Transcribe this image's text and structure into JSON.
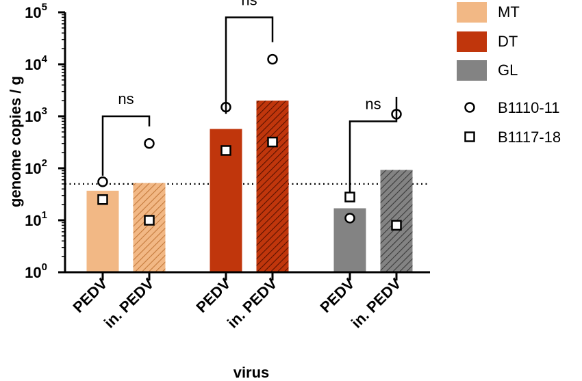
{
  "chart_data": {
    "type": "bar",
    "ylabel": "genome copies / g",
    "xlabel": "virus",
    "yscale": "log",
    "ylim": [
      1,
      100000
    ],
    "y_ticks": [
      {
        "value": 1,
        "base": "10",
        "exp": "0"
      },
      {
        "value": 10,
        "base": "10",
        "exp": "1"
      },
      {
        "value": 100,
        "base": "10",
        "exp": "2"
      },
      {
        "value": 1000,
        "base": "10",
        "exp": "3"
      },
      {
        "value": 10000,
        "base": "10",
        "exp": "4"
      },
      {
        "value": 100000,
        "base": "10",
        "exp": "5"
      }
    ],
    "threshold": 50,
    "groups": [
      {
        "name": "MT",
        "color": "#F2B885",
        "hatch": "#c47a3c"
      },
      {
        "name": "DT",
        "color": "#C0360C",
        "hatch": "#5a1200"
      },
      {
        "name": "GL",
        "color": "#838383",
        "hatch": "#3a3a3a"
      }
    ],
    "bars": [
      {
        "label": "PEDV",
        "group": "MT",
        "treated": false,
        "value": 37,
        "B1110-11": 55,
        "B1117-18": 25
      },
      {
        "label": "in. PEDV",
        "group": "MT",
        "treated": true,
        "value": 52,
        "B1110-11": 300,
        "B1117-18": 10
      },
      {
        "label": "PEDV",
        "group": "DT",
        "treated": false,
        "value": 570,
        "B1110-11": 1500,
        "B1117-18": 220
      },
      {
        "label": "in. PEDV",
        "group": "DT",
        "treated": true,
        "value": 2000,
        "B1110-11": 12500,
        "B1117-18": 320
      },
      {
        "label": "PEDV",
        "group": "GL",
        "treated": false,
        "value": 17,
        "B1110-11": 11,
        "B1117-18": 28
      },
      {
        "label": "in. PEDV",
        "group": "GL",
        "treated": true,
        "value": 93,
        "B1110-11": 1100,
        "B1117-18": 8
      }
    ],
    "comparisons": [
      {
        "label": "ns",
        "from": 0,
        "to": 1,
        "level": 1000
      },
      {
        "label": "ns",
        "from": 2,
        "to": 3,
        "level": 80000
      },
      {
        "label": "ns",
        "from": 4,
        "to": 5,
        "level": 800
      }
    ],
    "legend": [
      {
        "label": "MT",
        "kind": "swatch",
        "color": "#F2B885"
      },
      {
        "label": "DT",
        "kind": "swatch",
        "color": "#C0360C"
      },
      {
        "label": "GL",
        "kind": "swatch",
        "color": "#838383"
      },
      {
        "label": "B1110-11",
        "kind": "circle"
      },
      {
        "label": "B1117-18",
        "kind": "square"
      }
    ],
    "legend_position": "right"
  }
}
